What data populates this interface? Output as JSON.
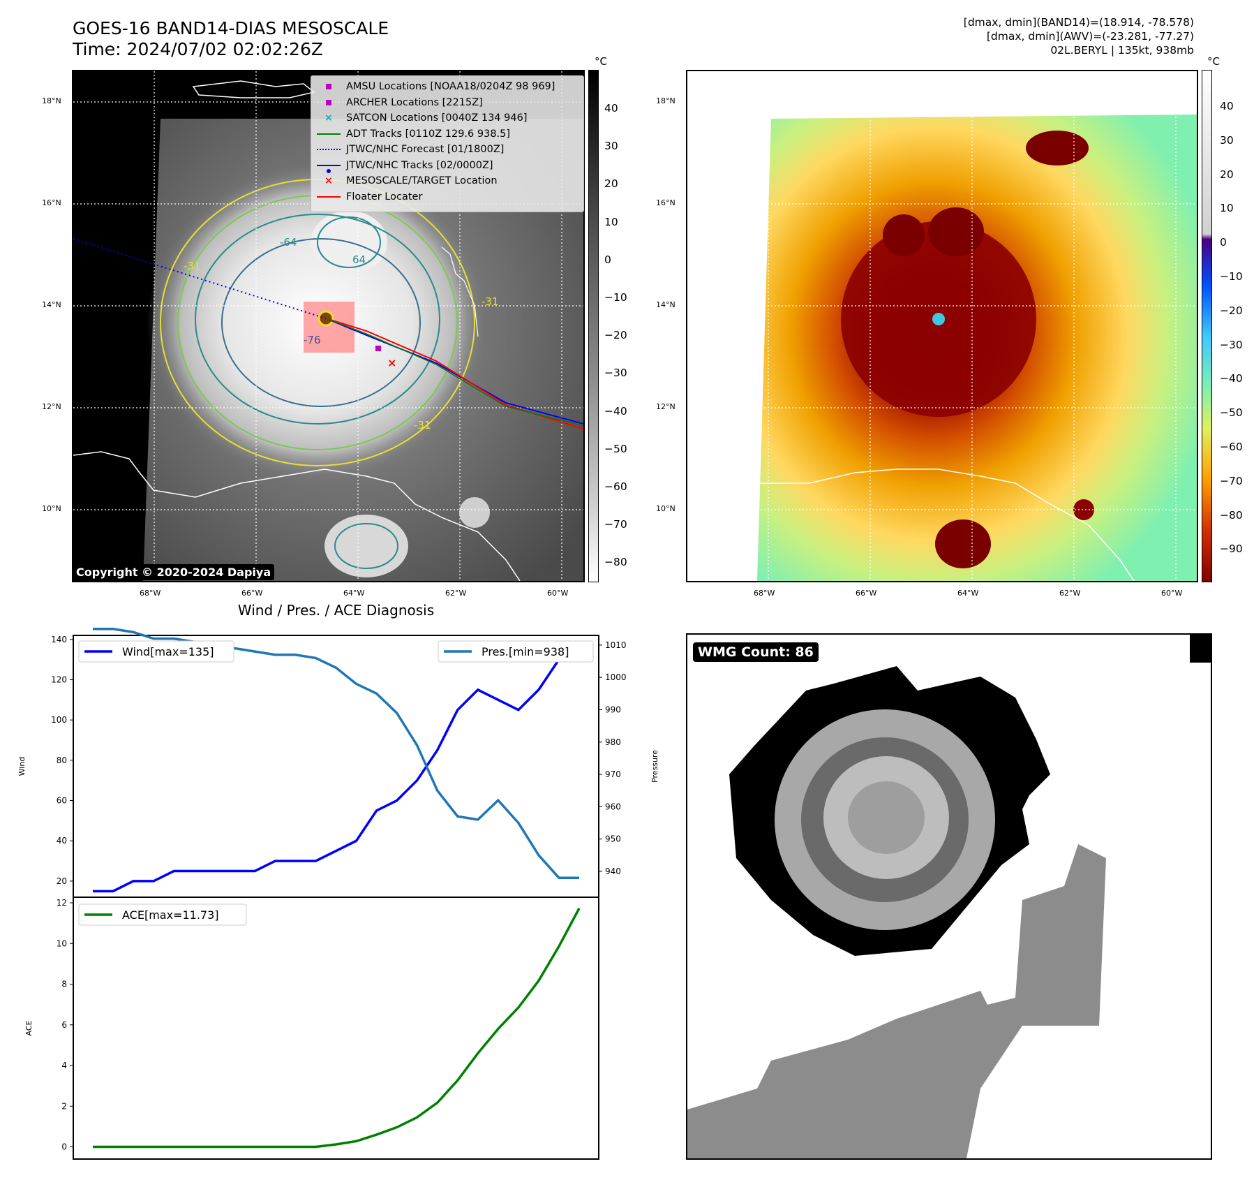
{
  "header": {
    "title_line1": "GOES-16 BAND14-DIAS MESOSCALE",
    "title_line2": "Time: 2024/07/02 02:02:26Z",
    "info_line1": "[dmax, dmin](BAND14)=(18.914, -78.578)",
    "info_line2": "[dmax, dmin](AWV)=(-23.281, -77.27)",
    "info_line3": "02L.BERYL | 135kt, 938mb"
  },
  "map_axes": {
    "lat_ticks": [
      "18°N",
      "16°N",
      "14°N",
      "12°N",
      "10°N"
    ],
    "lon_ticks": [
      "68°W",
      "66°W",
      "64°W",
      "62°W",
      "60°W"
    ]
  },
  "colorbar_left": {
    "unit": "°C",
    "ticks": [
      "40",
      "30",
      "20",
      "10",
      "0",
      "−10",
      "−20",
      "−30",
      "−40",
      "−50",
      "−60",
      "−70",
      "−80"
    ]
  },
  "colorbar_right": {
    "unit": "°C",
    "ticks": [
      "40",
      "30",
      "20",
      "10",
      "0",
      "−10",
      "−20",
      "−30",
      "−40",
      "−50",
      "−60",
      "−70",
      "−80",
      "−90"
    ]
  },
  "map_legend": [
    {
      "label": "AMSU Locations [NOAA18/0204Z 98 969]",
      "symbol": "square",
      "color": "#c000c0"
    },
    {
      "label": "ARCHER Locations [2215Z]",
      "symbol": "square",
      "color": "#c000c0"
    },
    {
      "label": "SATCON Locations [0040Z 134 946]",
      "symbol": "x",
      "color": "#00b4b4"
    },
    {
      "label": "ADT Tracks [0110Z 129.6 938.5]",
      "symbol": "line",
      "color": "#008000"
    },
    {
      "label": "JTWC/NHC Forecast [01/1800Z]",
      "symbol": "dotted-line",
      "color": "#0000ff"
    },
    {
      "label": "JTWC/NHC Tracks [02/0000Z]",
      "symbol": "line-dot",
      "color": "#0000ff"
    },
    {
      "label": "MESOSCALE/TARGET Location",
      "symbol": "x",
      "color": "#ff0000"
    },
    {
      "label": "Floater Locater",
      "symbol": "line",
      "color": "#ff0000"
    }
  ],
  "contour_labels": [
    "-31",
    "-64",
    "-76",
    "-31",
    "64",
    "-31"
  ],
  "copyright": "Copyright © 2020-2024 Dapiya",
  "wmg_label": "WMG Count: 86",
  "colors": {
    "wind": "#0000ff",
    "pressure": "#1f77b4",
    "ace": "#008000",
    "storm_box": "#ff8080"
  },
  "chart_data": [
    {
      "type": "line",
      "title": "Wind / Pres. / ACE Diagnosis",
      "ylabel": "Wind",
      "y2label": "Pressure",
      "ylim": [
        12,
        142
      ],
      "y2lim": [
        932,
        1013
      ],
      "y_ticks": [
        20,
        40,
        60,
        80,
        100,
        120,
        140
      ],
      "y2_ticks": [
        940,
        950,
        960,
        970,
        980,
        990,
        1000,
        1010
      ],
      "x": [
        0,
        1,
        2,
        3,
        4,
        5,
        6,
        7,
        8,
        9,
        10,
        11,
        12,
        13,
        14,
        15,
        16,
        17,
        18,
        19,
        20,
        21,
        22,
        23,
        24
      ],
      "series": [
        {
          "name": "Wind[max=135]",
          "axis": "left",
          "values": [
            15,
            15,
            20,
            20,
            25,
            25,
            25,
            25,
            25,
            30,
            30,
            30,
            35,
            40,
            55,
            60,
            70,
            85,
            105,
            115,
            110,
            105,
            115,
            130,
            135
          ]
        },
        {
          "name": "Pres.[min=938]",
          "axis": "right",
          "values": [
            1015,
            1015,
            1014,
            1012,
            1012,
            1011,
            1009,
            1009,
            1008,
            1007,
            1007,
            1006,
            1003,
            998,
            995,
            989,
            979,
            965,
            957,
            956,
            962,
            955,
            945,
            938,
            938
          ]
        }
      ]
    },
    {
      "type": "line",
      "ylabel": "ACE",
      "ylim": [
        -0.6,
        12
      ],
      "y_ticks": [
        0,
        2,
        4,
        6,
        8,
        10,
        12
      ],
      "x": [
        0,
        1,
        2,
        3,
        4,
        5,
        6,
        7,
        8,
        9,
        10,
        11,
        12,
        13,
        14,
        15,
        16,
        17,
        18,
        19,
        20,
        21,
        22,
        23,
        24
      ],
      "series": [
        {
          "name": "ACE[max=11.73]",
          "values": [
            0,
            0,
            0,
            0,
            0,
            0,
            0,
            0,
            0,
            0,
            0,
            0,
            0.12,
            0.28,
            0.6,
            0.96,
            1.45,
            2.17,
            3.27,
            4.6,
            5.8,
            6.85,
            8.17,
            9.86,
            11.73
          ]
        }
      ]
    }
  ]
}
